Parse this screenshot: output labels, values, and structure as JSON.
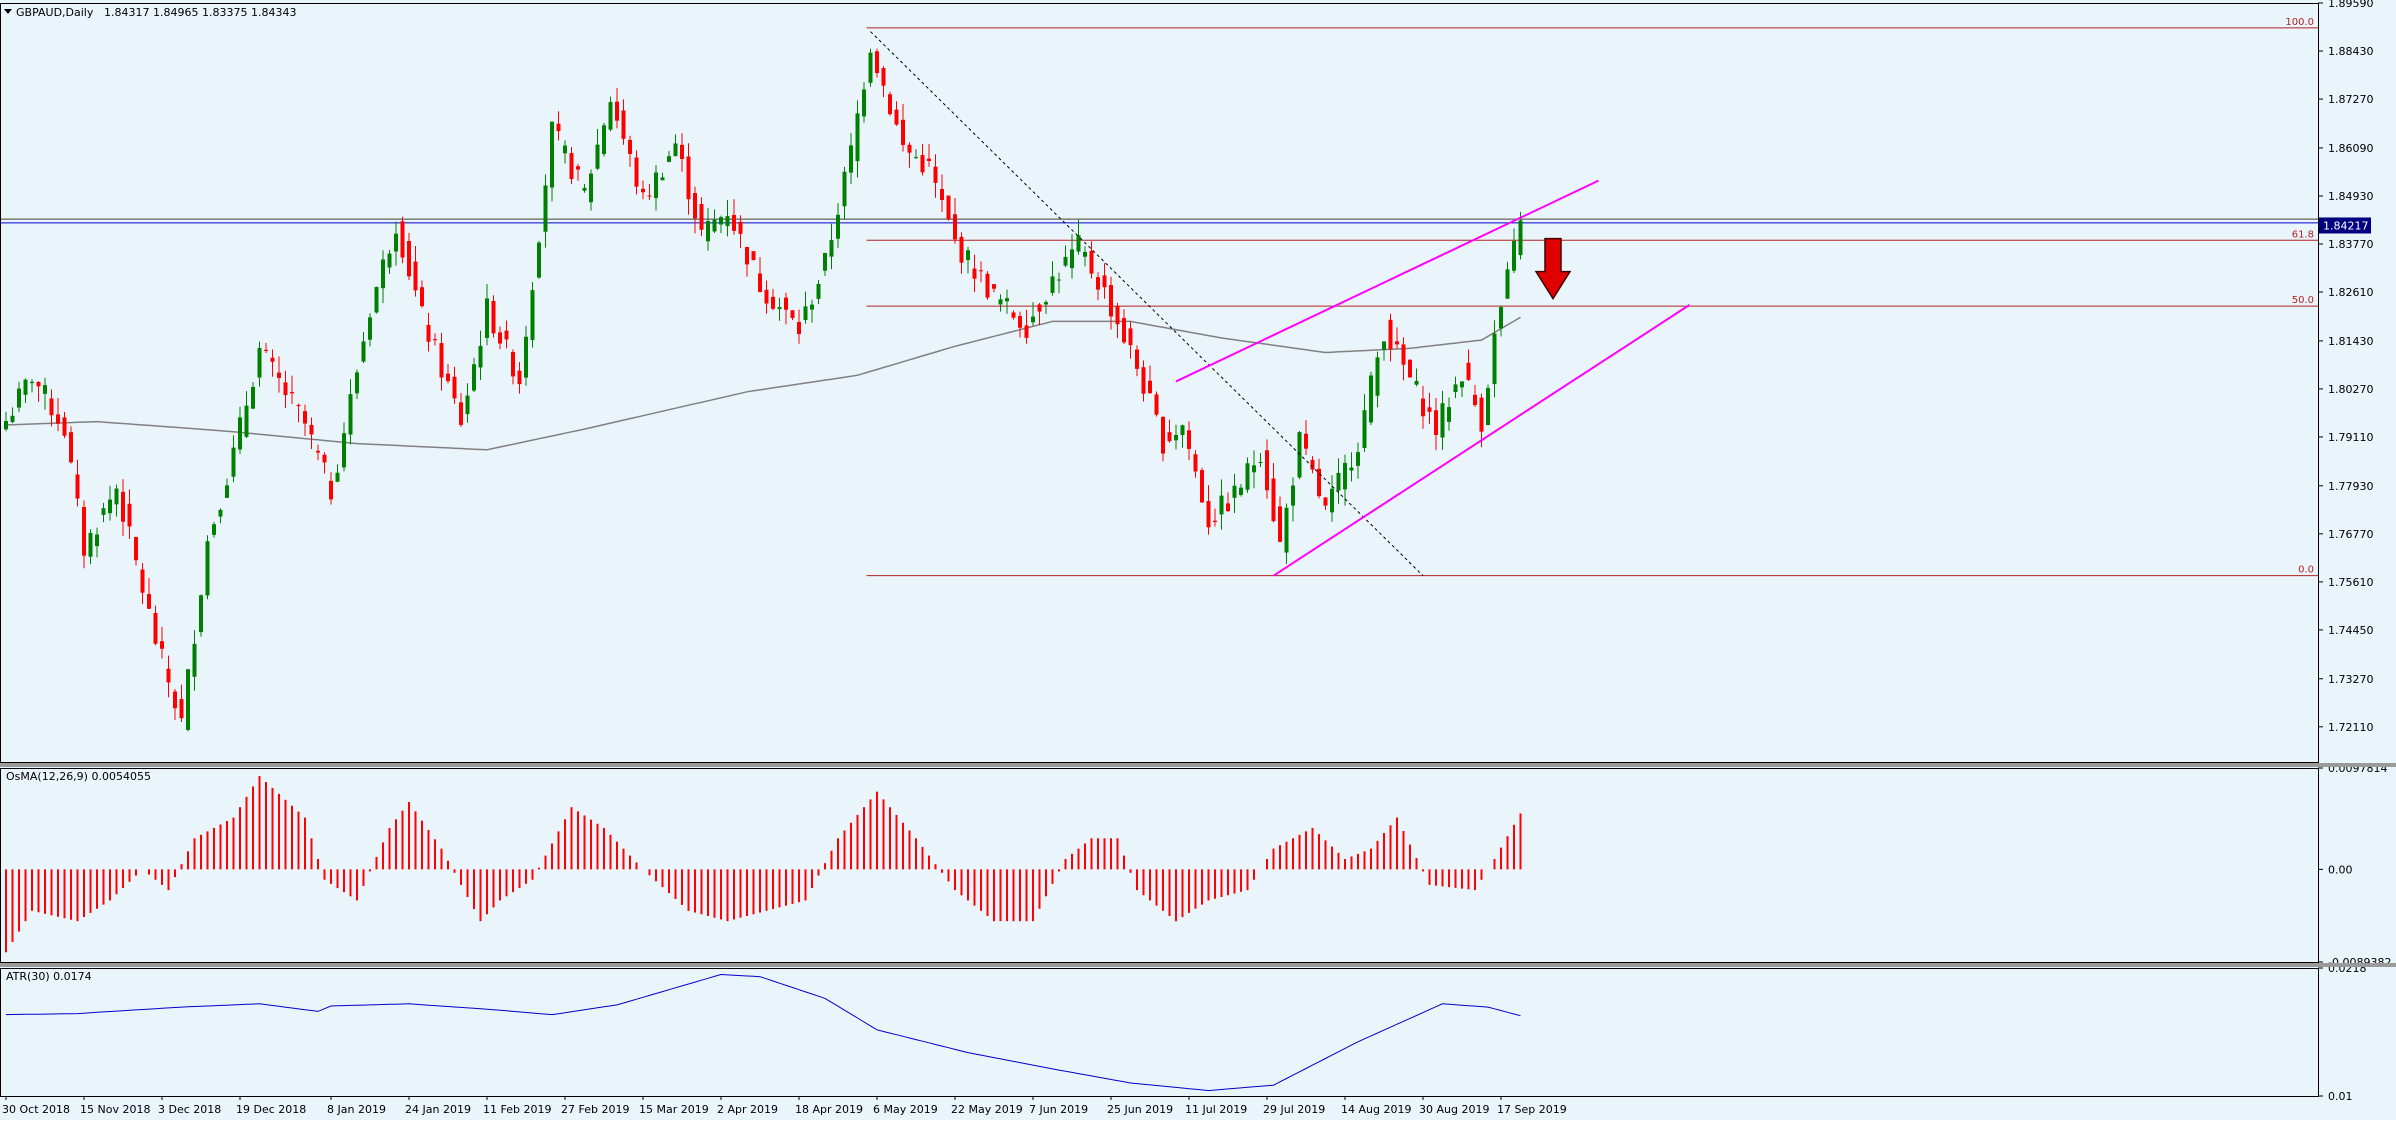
{
  "symbol_header": {
    "symbol": "GBPAUD,Daily",
    "ohlc": "1.84317 1.84965 1.83375 1.84343"
  },
  "colors": {
    "background": "#EAF4FB",
    "bull": "#008000",
    "bear": "#FF0000",
    "ma": "#808080",
    "fib": "#B22222",
    "channel": "#FF00FF",
    "atr": "#0000CD",
    "price_tag": "#000080",
    "hline": "#0000CD"
  },
  "chart_data": [
    {
      "type": "candlestick",
      "pane": "price",
      "ylim": [
        1.7126,
        1.8959
      ],
      "y_ticks": [
        "1.89590",
        "1.88430",
        "1.87270",
        "1.86090",
        "1.84930",
        "1.83770",
        "1.82610",
        "1.81430",
        "1.80270",
        "1.79110",
        "1.77930",
        "1.76770",
        "1.75610",
        "1.74450",
        "1.73270",
        "1.72110"
      ],
      "current_price_label": "1.84217",
      "horizontal_lines": [
        1.8437,
        1.8428
      ],
      "fibonacci": {
        "labels": [
          "100.0",
          "61.8",
          "50.0",
          "0.0"
        ],
        "levels": [
          1.8899,
          1.8386,
          1.8227,
          1.7576
        ],
        "from_date": "2019-05-03"
      },
      "anchors": [
        {
          "date": "2018-10-30",
          "price": 1.795
        },
        {
          "date": "2018-11-05",
          "price": 1.806
        },
        {
          "date": "2018-11-12",
          "price": 1.793
        },
        {
          "date": "2018-11-15",
          "price": 1.764
        },
        {
          "date": "2018-11-22",
          "price": 1.779
        },
        {
          "date": "2018-11-30",
          "price": 1.742
        },
        {
          "date": "2018-12-06",
          "price": 1.722
        },
        {
          "date": "2018-12-12",
          "price": 1.766
        },
        {
          "date": "2018-12-18",
          "price": 1.787
        },
        {
          "date": "2018-12-24",
          "price": 1.812
        },
        {
          "date": "2019-01-02",
          "price": 1.794
        },
        {
          "date": "2019-01-08",
          "price": 1.778
        },
        {
          "date": "2019-01-16",
          "price": 1.822
        },
        {
          "date": "2019-01-22",
          "price": 1.843
        },
        {
          "date": "2019-01-28",
          "price": 1.82
        },
        {
          "date": "2019-02-05",
          "price": 1.795
        },
        {
          "date": "2019-02-11",
          "price": 1.822
        },
        {
          "date": "2019-02-18",
          "price": 1.805
        },
        {
          "date": "2019-02-25",
          "price": 1.865
        },
        {
          "date": "2019-03-04",
          "price": 1.85
        },
        {
          "date": "2019-03-08",
          "price": 1.873
        },
        {
          "date": "2019-03-15",
          "price": 1.848
        },
        {
          "date": "2019-03-22",
          "price": 1.862
        },
        {
          "date": "2019-03-28",
          "price": 1.84
        },
        {
          "date": "2019-04-03",
          "price": 1.846
        },
        {
          "date": "2019-04-10",
          "price": 1.828
        },
        {
          "date": "2019-04-18",
          "price": 1.817
        },
        {
          "date": "2019-04-24",
          "price": 1.833
        },
        {
          "date": "2019-04-30",
          "price": 1.86
        },
        {
          "date": "2019-05-03",
          "price": 1.886
        },
        {
          "date": "2019-05-10",
          "price": 1.861
        },
        {
          "date": "2019-05-16",
          "price": 1.856
        },
        {
          "date": "2019-05-22",
          "price": 1.838
        },
        {
          "date": "2019-05-30",
          "price": 1.825
        },
        {
          "date": "2019-06-06",
          "price": 1.818
        },
        {
          "date": "2019-06-12",
          "price": 1.829
        },
        {
          "date": "2019-06-18",
          "price": 1.837
        },
        {
          "date": "2019-06-24",
          "price": 1.826
        },
        {
          "date": "2019-07-01",
          "price": 1.808
        },
        {
          "date": "2019-07-05",
          "price": 1.79
        },
        {
          "date": "2019-07-10",
          "price": 1.794
        },
        {
          "date": "2019-07-16",
          "price": 1.771
        },
        {
          "date": "2019-07-22",
          "price": 1.777
        },
        {
          "date": "2019-07-26",
          "price": 1.788
        },
        {
          "date": "2019-07-31",
          "price": 1.765
        },
        {
          "date": "2019-08-05",
          "price": 1.79
        },
        {
          "date": "2019-08-09",
          "price": 1.773
        },
        {
          "date": "2019-08-16",
          "price": 1.79
        },
        {
          "date": "2019-08-22",
          "price": 1.817
        },
        {
          "date": "2019-08-29",
          "price": 1.802
        },
        {
          "date": "2019-09-03",
          "price": 1.793
        },
        {
          "date": "2019-09-09",
          "price": 1.807
        },
        {
          "date": "2019-09-12",
          "price": 1.795
        },
        {
          "date": "2019-09-16",
          "price": 1.815
        },
        {
          "date": "2019-09-20",
          "price": 1.8434
        }
      ],
      "ma_200": [
        {
          "date": "2018-10-30",
          "value": 1.794
        },
        {
          "date": "2018-11-19",
          "value": 1.7948
        },
        {
          "date": "2018-12-17",
          "value": 1.7925
        },
        {
          "date": "2019-01-14",
          "value": 1.7895
        },
        {
          "date": "2019-02-11",
          "value": 1.788
        },
        {
          "date": "2019-03-04",
          "value": 1.793
        },
        {
          "date": "2019-04-08",
          "value": 1.802
        },
        {
          "date": "2019-05-01",
          "value": 1.806
        },
        {
          "date": "2019-05-22",
          "value": 1.813
        },
        {
          "date": "2019-06-12",
          "value": 1.819
        },
        {
          "date": "2019-06-28",
          "value": 1.819
        },
        {
          "date": "2019-07-18",
          "value": 1.815
        },
        {
          "date": "2019-08-09",
          "value": 1.8115
        },
        {
          "date": "2019-08-28",
          "value": 1.8125
        },
        {
          "date": "2019-09-12",
          "value": 1.8145
        },
        {
          "date": "2019-09-20",
          "value": 1.82
        }
      ],
      "trendlines": [
        {
          "style": "dotted",
          "color": "#000000",
          "from": {
            "date": "2019-05-03",
            "price": 1.889
          },
          "to": {
            "date": "2019-08-30",
            "price": 1.7576
          }
        },
        {
          "style": "solid",
          "color": "#FF00FF",
          "from": {
            "date": "2019-07-09",
            "price": 1.8045
          },
          "to": {
            "date": "2019-10-08",
            "price": 1.853
          }
        },
        {
          "style": "solid",
          "color": "#FF00FF",
          "from": {
            "date": "2019-07-30",
            "price": 1.7576
          },
          "to": {
            "date": "2019-10-28",
            "price": 1.823
          }
        }
      ],
      "arrow": {
        "direction": "down",
        "date": "2019-09-27",
        "price_top": 1.839,
        "price_bottom": 1.8245
      }
    },
    {
      "type": "histogram",
      "pane": "osma",
      "title": "OsMA(12,26,9) 0.0054055",
      "ylim": [
        -0.0089382,
        0.0097814
      ],
      "y_ticks": [
        "0.0097814",
        "0.00",
        "-0.0089382"
      ],
      "anchors": [
        {
          "date": "2018-10-30",
          "value": -0.008
        },
        {
          "date": "2018-11-05",
          "value": -0.004
        },
        {
          "date": "2018-11-14",
          "value": -0.005
        },
        {
          "date": "2018-11-21",
          "value": -0.003
        },
        {
          "date": "2018-11-28",
          "value": 0.0
        },
        {
          "date": "2018-12-04",
          "value": -0.002
        },
        {
          "date": "2018-12-10",
          "value": 0.003
        },
        {
          "date": "2018-12-18",
          "value": 0.005
        },
        {
          "date": "2018-12-24",
          "value": 0.009
        },
        {
          "date": "2019-01-02",
          "value": 0.005
        },
        {
          "date": "2019-01-07",
          "value": -0.001
        },
        {
          "date": "2019-01-14",
          "value": -0.003
        },
        {
          "date": "2019-01-21",
          "value": 0.004
        },
        {
          "date": "2019-01-24",
          "value": 0.0065
        },
        {
          "date": "2019-01-31",
          "value": 0.002
        },
        {
          "date": "2019-02-08",
          "value": -0.005
        },
        {
          "date": "2019-02-13",
          "value": -0.003
        },
        {
          "date": "2019-02-20",
          "value": -0.001
        },
        {
          "date": "2019-02-28",
          "value": 0.006
        },
        {
          "date": "2019-03-07",
          "value": 0.004
        },
        {
          "date": "2019-03-15",
          "value": 0.0
        },
        {
          "date": "2019-03-26",
          "value": -0.004
        },
        {
          "date": "2019-04-03",
          "value": -0.005
        },
        {
          "date": "2019-04-11",
          "value": -0.004
        },
        {
          "date": "2019-04-19",
          "value": -0.003
        },
        {
          "date": "2019-04-26",
          "value": 0.003
        },
        {
          "date": "2019-05-06",
          "value": 0.0075
        },
        {
          "date": "2019-05-14",
          "value": 0.003
        },
        {
          "date": "2019-05-22",
          "value": -0.002
        },
        {
          "date": "2019-05-30",
          "value": -0.005
        },
        {
          "date": "2019-06-07",
          "value": -0.005
        },
        {
          "date": "2019-06-14",
          "value": 0.001
        },
        {
          "date": "2019-06-20",
          "value": 0.003
        },
        {
          "date": "2019-06-26",
          "value": 0.003
        },
        {
          "date": "2019-07-01",
          "value": -0.002
        },
        {
          "date": "2019-07-09",
          "value": -0.005
        },
        {
          "date": "2019-07-16",
          "value": -0.003
        },
        {
          "date": "2019-07-24",
          "value": -0.002
        },
        {
          "date": "2019-07-30",
          "value": 0.002
        },
        {
          "date": "2019-08-07",
          "value": 0.004
        },
        {
          "date": "2019-08-14",
          "value": 0.001
        },
        {
          "date": "2019-08-20",
          "value": 0.002
        },
        {
          "date": "2019-08-26",
          "value": 0.005
        },
        {
          "date": "2019-09-02",
          "value": -0.0015
        },
        {
          "date": "2019-09-11",
          "value": -0.002
        },
        {
          "date": "2019-09-16",
          "value": 0.001
        },
        {
          "date": "2019-09-20",
          "value": 0.0054
        }
      ]
    },
    {
      "type": "line",
      "pane": "atr",
      "title": "ATR(30) 0.0174",
      "ylim": [
        0.01,
        0.0218
      ],
      "y_ticks": [
        "0.0218",
        "0.01"
      ],
      "anchors": [
        {
          "date": "2018-10-30",
          "value": 0.0175
        },
        {
          "date": "2018-11-14",
          "value": 0.0176
        },
        {
          "date": "2018-12-06",
          "value": 0.0182
        },
        {
          "date": "2018-12-24",
          "value": 0.0185
        },
        {
          "date": "2019-01-04",
          "value": 0.0178
        },
        {
          "date": "2019-01-08",
          "value": 0.0183
        },
        {
          "date": "2019-01-24",
          "value": 0.0185
        },
        {
          "date": "2019-02-11",
          "value": 0.018
        },
        {
          "date": "2019-02-25",
          "value": 0.0175
        },
        {
          "date": "2019-03-11",
          "value": 0.0184
        },
        {
          "date": "2019-04-02",
          "value": 0.0212
        },
        {
          "date": "2019-04-10",
          "value": 0.021
        },
        {
          "date": "2019-04-24",
          "value": 0.019
        },
        {
          "date": "2019-05-06",
          "value": 0.0161
        },
        {
          "date": "2019-05-24",
          "value": 0.014
        },
        {
          "date": "2019-06-12",
          "value": 0.0125
        },
        {
          "date": "2019-06-28",
          "value": 0.0112
        },
        {
          "date": "2019-07-16",
          "value": 0.0105
        },
        {
          "date": "2019-07-30",
          "value": 0.011
        },
        {
          "date": "2019-08-16",
          "value": 0.015
        },
        {
          "date": "2019-09-04",
          "value": 0.0185
        },
        {
          "date": "2019-09-13",
          "value": 0.0182
        },
        {
          "date": "2019-09-20",
          "value": 0.0174
        }
      ]
    }
  ],
  "time_axis": {
    "start_date": "2018-10-30",
    "ticks": [
      {
        "label": "30 Oct 2018",
        "date": "2018-10-30"
      },
      {
        "label": "15 Nov 2018",
        "date": "2018-11-15"
      },
      {
        "label": "3 Dec 2018",
        "date": "2018-12-03"
      },
      {
        "label": "19 Dec 2018",
        "date": "2018-12-19"
      },
      {
        "label": "8 Jan 2019",
        "date": "2019-01-08"
      },
      {
        "label": "24 Jan 2019",
        "date": "2019-01-24"
      },
      {
        "label": "11 Feb 2019",
        "date": "2019-02-11"
      },
      {
        "label": "27 Feb 2019",
        "date": "2019-02-27"
      },
      {
        "label": "15 Mar 2019",
        "date": "2019-03-15"
      },
      {
        "label": "2 Apr 2019",
        "date": "2019-04-02"
      },
      {
        "label": "18 Apr 2019",
        "date": "2019-04-18"
      },
      {
        "label": "6 May 2019",
        "date": "2019-05-06"
      },
      {
        "label": "22 May 2019",
        "date": "2019-05-22"
      },
      {
        "label": "7 Jun 2019",
        "date": "2019-06-07"
      },
      {
        "label": "25 Jun 2019",
        "date": "2019-06-25"
      },
      {
        "label": "11 Jul 2019",
        "date": "2019-07-11"
      },
      {
        "label": "29 Jul 2019",
        "date": "2019-07-29"
      },
      {
        "label": "14 Aug 2019",
        "date": "2019-08-14"
      },
      {
        "label": "30 Aug 2019",
        "date": "2019-08-30"
      },
      {
        "label": "17 Sep 2019",
        "date": "2019-09-17"
      }
    ]
  }
}
